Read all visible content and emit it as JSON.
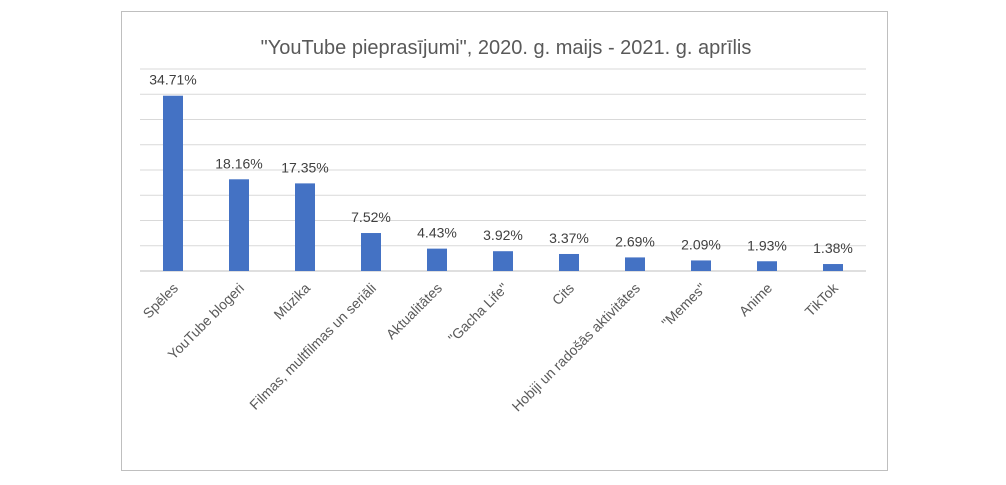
{
  "chart_data": {
    "type": "bar",
    "title": "\"YouTube pieprasījumi\",  2020. g. maijs - 2021. g. aprīlis",
    "categories": [
      "Spēles",
      "YouTube blogeri",
      "Mūzika",
      "Filmas, multfilmas un seriāli",
      "Aktualitātes",
      "\"Gacha Life\"",
      "Cits",
      "Hobiji un radošās aktivitātes",
      "\"Memes\"",
      "Anime",
      "TikTok"
    ],
    "values": [
      34.71,
      18.16,
      17.35,
      7.52,
      4.43,
      3.92,
      3.37,
      2.69,
      2.09,
      1.93,
      1.38
    ],
    "data_labels": [
      "34.71%",
      "18.16%",
      "17.35%",
      "7.52%",
      "4.43%",
      "3.92%",
      "3.37%",
      "2.69%",
      "2.09%",
      "1.93%",
      "1.38%"
    ],
    "ylim": [
      0,
      40
    ],
    "grid": true,
    "colors": {
      "bar": "#4472c4",
      "grid": "#d9d9d9",
      "axis": "#bfbfbf"
    }
  }
}
